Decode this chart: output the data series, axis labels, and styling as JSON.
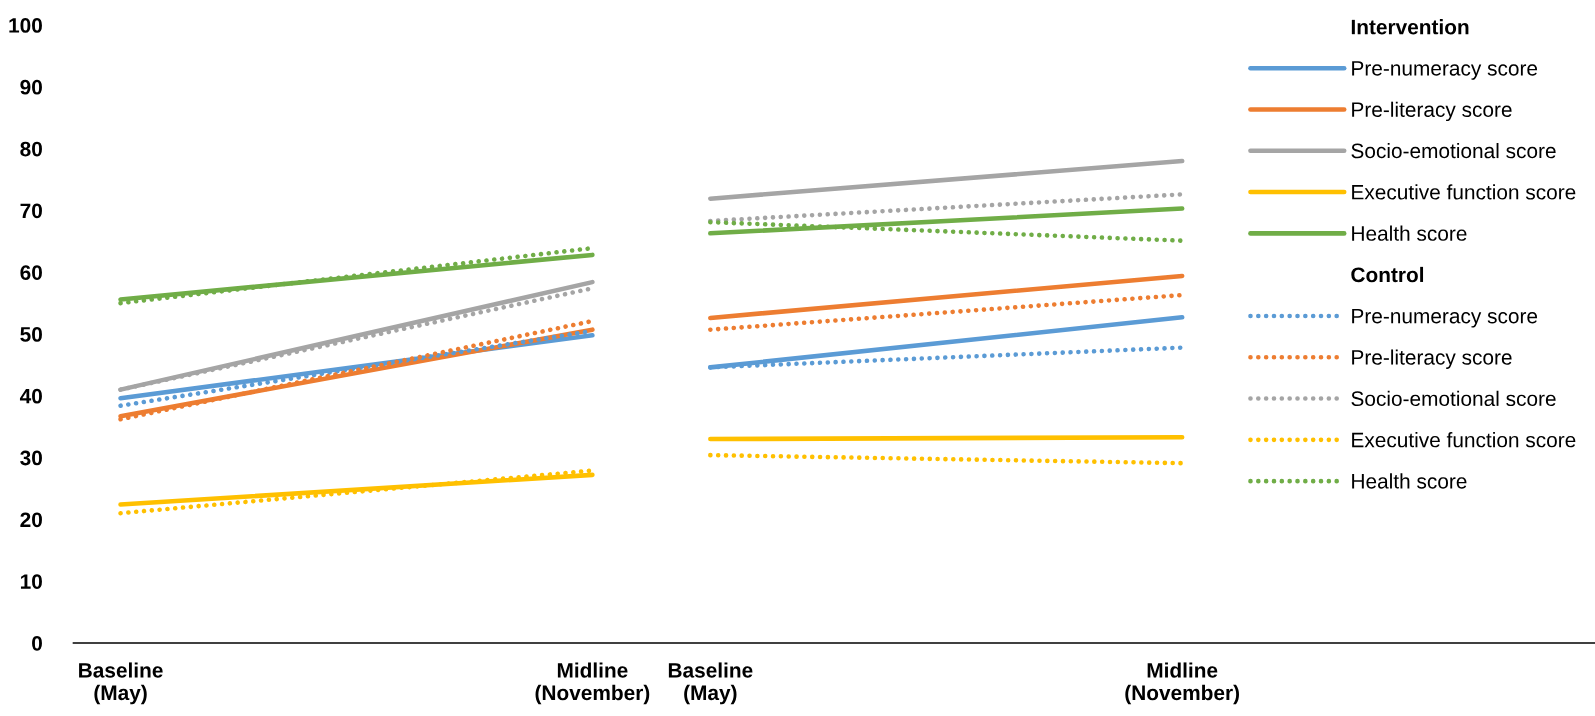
{
  "chart_data": {
    "type": "line",
    "categories": [
      "Baseline\n(May)",
      null,
      null,
      null,
      null,
      null,
      null,
      null,
      "Midline\n(November)",
      null,
      "Baseline\n(May)",
      null,
      null,
      null,
      null,
      null,
      null,
      null,
      "Midline\n(November)"
    ],
    "ylim": [
      0,
      100
    ],
    "yticks": [
      0,
      10,
      20,
      30,
      40,
      50,
      60,
      70,
      80,
      90,
      100
    ],
    "grid": false,
    "legend": "top right",
    "marker": "none",
    "annotations": [
      "Intervention",
      "Control"
    ],
    "series": [
      {
        "name": "Pre-numeracy score",
        "color": "#5b9bd5",
        "line_style": "solid",
        "values": [
          39.6,
          null,
          null,
          null,
          null,
          null,
          null,
          null,
          49.8,
          null,
          null,
          null,
          null,
          null,
          null,
          null,
          null,
          null,
          null
        ]
      },
      {
        "name": "Pre-literacy score",
        "color": "#ed7d31",
        "line_style": "solid",
        "values": [
          36.7,
          null,
          null,
          null,
          null,
          null,
          null,
          null,
          50.7,
          null,
          null,
          null,
          null,
          null,
          null,
          null,
          null,
          null,
          null
        ]
      },
      {
        "name": "Socio-emotional score",
        "color": "#a5a5a5",
        "line_style": "solid",
        "values": [
          41.0,
          null,
          null,
          null,
          null,
          null,
          null,
          null,
          58.4,
          null,
          null,
          null,
          null,
          null,
          null,
          null,
          null,
          null,
          null
        ]
      },
      {
        "name": "Executive function score",
        "color": "#ffc000",
        "line_style": "solid",
        "values": [
          22.4,
          null,
          null,
          null,
          null,
          null,
          null,
          null,
          27.2,
          null,
          null,
          null,
          null,
          null,
          null,
          null,
          null,
          null,
          null
        ]
      },
      {
        "name": "Health score",
        "color": "#70ad47",
        "line_style": "solid",
        "values": [
          55.6,
          null,
          null,
          null,
          null,
          null,
          null,
          null,
          62.8,
          null,
          null,
          null,
          null,
          null,
          null,
          null,
          null,
          null,
          null
        ]
      },
      {
        "name": "Pre-numeracy score",
        "color": "#5b9bd5",
        "line_style": "dotted",
        "values": [
          38.4,
          null,
          null,
          null,
          null,
          null,
          null,
          null,
          50.5,
          null,
          null,
          null,
          null,
          null,
          null,
          null,
          null,
          null,
          null
        ]
      },
      {
        "name": "Pre-literacy score",
        "color": "#ed7d31",
        "line_style": "dotted",
        "values": [
          36.2,
          null,
          null,
          null,
          null,
          null,
          null,
          null,
          52.1,
          null,
          null,
          null,
          null,
          null,
          null,
          null,
          null,
          null,
          null
        ]
      },
      {
        "name": "Socio-emotional score",
        "color": "#a5a5a5",
        "line_style": "dotted",
        "values": [
          41.0,
          null,
          null,
          null,
          null,
          null,
          null,
          null,
          57.4,
          null,
          null,
          null,
          null,
          null,
          null,
          null,
          null,
          null,
          null
        ]
      },
      {
        "name": "Executive function score",
        "color": "#ffc000",
        "line_style": "dotted",
        "values": [
          21.0,
          null,
          null,
          null,
          null,
          null,
          null,
          null,
          27.9,
          null,
          null,
          null,
          null,
          null,
          null,
          null,
          null,
          null,
          null
        ]
      },
      {
        "name": "Health score",
        "color": "#70ad47",
        "line_style": "dotted",
        "values": [
          55.0,
          null,
          null,
          null,
          null,
          null,
          null,
          null,
          63.9,
          null,
          null,
          null,
          null,
          null,
          null,
          null,
          null,
          null,
          null
        ]
      },
      {
        "color": "#5b9bd5",
        "line_style": "solid",
        "values": [
          null,
          null,
          null,
          null,
          null,
          null,
          null,
          null,
          null,
          null,
          44.6,
          null,
          null,
          null,
          null,
          null,
          null,
          null,
          52.7
        ]
      },
      {
        "color": "#ed7d31",
        "line_style": "solid",
        "values": [
          null,
          null,
          null,
          null,
          null,
          null,
          null,
          null,
          null,
          null,
          52.6,
          null,
          null,
          null,
          null,
          null,
          null,
          null,
          59.4
        ]
      },
      {
        "color": "#a5a5a5",
        "line_style": "solid",
        "values": [
          null,
          null,
          null,
          null,
          null,
          null,
          null,
          null,
          null,
          null,
          71.9,
          null,
          null,
          null,
          null,
          null,
          null,
          null,
          78.0
        ]
      },
      {
        "color": "#ffc000",
        "line_style": "solid",
        "values": [
          null,
          null,
          null,
          null,
          null,
          null,
          null,
          null,
          null,
          null,
          33.0,
          null,
          null,
          null,
          null,
          null,
          null,
          null,
          33.3
        ]
      },
      {
        "color": "#70ad47",
        "line_style": "solid",
        "values": [
          null,
          null,
          null,
          null,
          null,
          null,
          null,
          null,
          null,
          null,
          66.3,
          null,
          null,
          null,
          null,
          null,
          null,
          null,
          70.3
        ]
      },
      {
        "color": "#5b9bd5",
        "line_style": "dotted",
        "values": [
          null,
          null,
          null,
          null,
          null,
          null,
          null,
          null,
          null,
          null,
          44.6,
          null,
          null,
          null,
          null,
          null,
          null,
          null,
          47.8
        ]
      },
      {
        "color": "#ed7d31",
        "line_style": "dotted",
        "values": [
          null,
          null,
          null,
          null,
          null,
          null,
          null,
          null,
          null,
          null,
          50.7,
          null,
          null,
          null,
          null,
          null,
          null,
          null,
          56.3
        ]
      },
      {
        "color": "#a5a5a5",
        "line_style": "dotted",
        "values": [
          null,
          null,
          null,
          null,
          null,
          null,
          null,
          null,
          null,
          null,
          68.3,
          null,
          null,
          null,
          null,
          null,
          null,
          null,
          72.6
        ]
      },
      {
        "color": "#ffc000",
        "line_style": "dotted",
        "values": [
          null,
          null,
          null,
          null,
          null,
          null,
          null,
          null,
          null,
          null,
          30.4,
          null,
          null,
          null,
          null,
          null,
          null,
          null,
          29.1
        ]
      },
      {
        "color": "#70ad47",
        "line_style": "dotted",
        "values": [
          null,
          null,
          null,
          null,
          null,
          null,
          null,
          null,
          null,
          null,
          68.1,
          null,
          null,
          null,
          null,
          null,
          null,
          null,
          65.1
        ]
      }
    ]
  }
}
